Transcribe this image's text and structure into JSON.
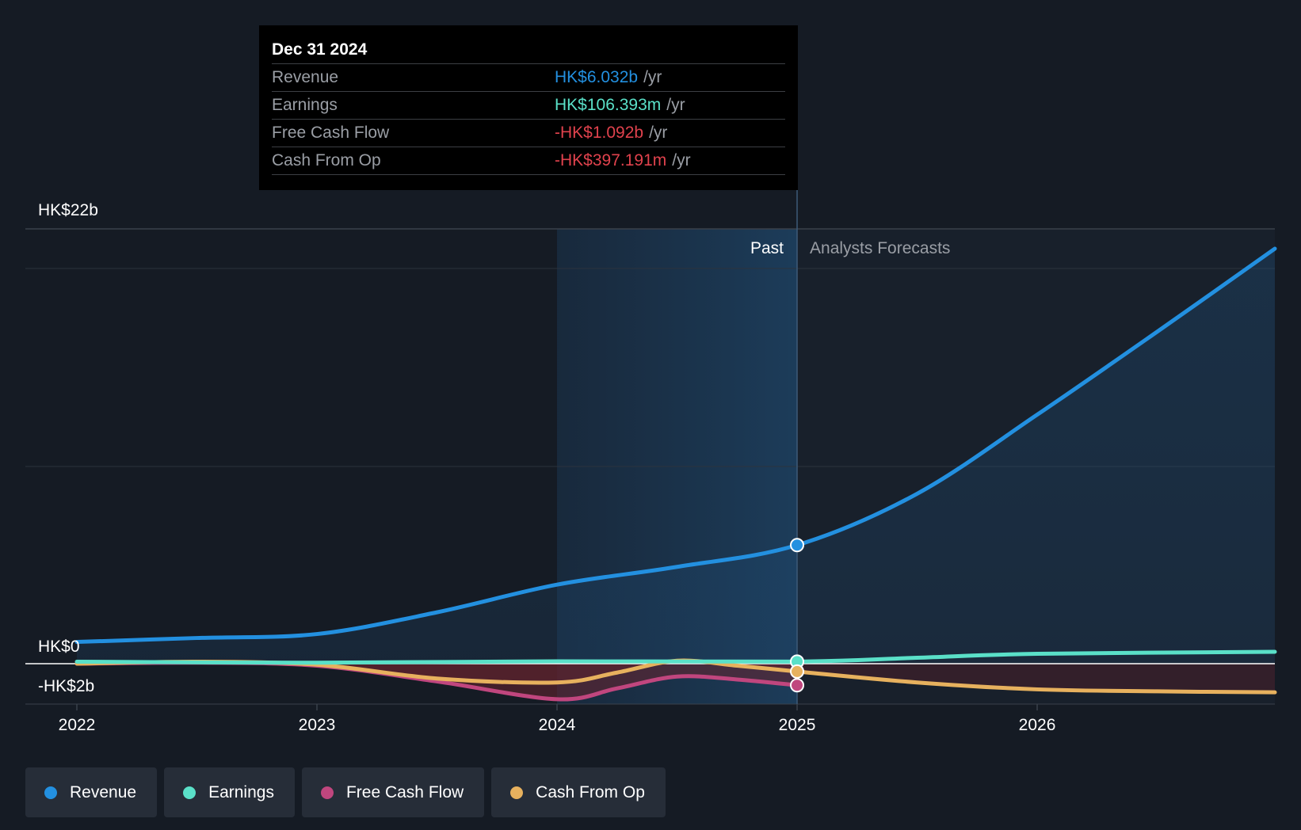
{
  "chart_data": {
    "type": "line",
    "title": "",
    "currency": "HK$",
    "x_ticks": [
      "2022",
      "2023",
      "2024",
      "2025",
      "2026"
    ],
    "y_labels": [
      "HK$22b",
      "HK$0",
      "-HK$2b"
    ],
    "ylim": [
      -2,
      22
    ],
    "xlim": [
      2022.0,
      2026.99
    ],
    "past_label": "Past",
    "forecast_label": "Analysts Forecasts",
    "past_end": 2025.0,
    "highlight_start": 2024.0,
    "series": [
      {
        "name": "Revenue",
        "color": "#2390e0",
        "unit": "b",
        "points": [
          [
            2022.0,
            1.1
          ],
          [
            2022.5,
            1.3
          ],
          [
            2023.0,
            1.5
          ],
          [
            2023.5,
            2.6
          ],
          [
            2024.0,
            4.0
          ],
          [
            2024.5,
            4.9
          ],
          [
            2025.0,
            6.0
          ],
          [
            2025.5,
            8.6
          ],
          [
            2026.0,
            12.6
          ],
          [
            2026.5,
            16.8
          ],
          [
            2026.99,
            21.0
          ]
        ]
      },
      {
        "name": "Earnings",
        "color": "#5ae0c8",
        "unit": "b",
        "points": [
          [
            2022.0,
            0.1
          ],
          [
            2023.0,
            0.05
          ],
          [
            2024.0,
            0.12
          ],
          [
            2025.0,
            0.106
          ],
          [
            2025.5,
            0.3
          ],
          [
            2026.0,
            0.5
          ],
          [
            2026.99,
            0.6
          ]
        ]
      },
      {
        "name": "Free Cash Flow",
        "color": "#c0467e",
        "unit": "b",
        "points": [
          [
            2022.0,
            0.0
          ],
          [
            2022.5,
            0.05
          ],
          [
            2023.0,
            -0.1
          ],
          [
            2023.5,
            -0.9
          ],
          [
            2024.0,
            -1.8
          ],
          [
            2024.25,
            -1.25
          ],
          [
            2024.5,
            -0.65
          ],
          [
            2024.75,
            -0.8
          ],
          [
            2025.0,
            -1.092
          ]
        ]
      },
      {
        "name": "Cash From Op",
        "color": "#e7b15e",
        "unit": "b",
        "points": [
          [
            2022.0,
            0.0
          ],
          [
            2022.5,
            0.1
          ],
          [
            2023.0,
            -0.05
          ],
          [
            2023.5,
            -0.75
          ],
          [
            2024.0,
            -0.95
          ],
          [
            2024.25,
            -0.45
          ],
          [
            2024.5,
            0.15
          ],
          [
            2024.75,
            -0.1
          ],
          [
            2025.0,
            -0.397
          ],
          [
            2025.5,
            -0.95
          ],
          [
            2026.0,
            -1.3
          ],
          [
            2026.5,
            -1.4
          ],
          [
            2026.99,
            -1.45
          ]
        ]
      }
    ]
  },
  "tooltip": {
    "date": "Dec 31 2024",
    "unit_suffix": "/yr",
    "rows": [
      {
        "label": "Revenue",
        "value": "HK$6.032b",
        "color": "#2390e0"
      },
      {
        "label": "Earnings",
        "value": "HK$106.393m",
        "color": "#5ae0c8"
      },
      {
        "label": "Free Cash Flow",
        "value": "-HK$1.092b",
        "color": "#e0424d"
      },
      {
        "label": "Cash From Op",
        "value": "-HK$397.191m",
        "color": "#e0424d"
      }
    ]
  },
  "legend": [
    {
      "label": "Revenue",
      "color": "#2390e0"
    },
    {
      "label": "Earnings",
      "color": "#5ae0c8"
    },
    {
      "label": "Free Cash Flow",
      "color": "#c0467e"
    },
    {
      "label": "Cash From Op",
      "color": "#e7b15e"
    }
  ]
}
